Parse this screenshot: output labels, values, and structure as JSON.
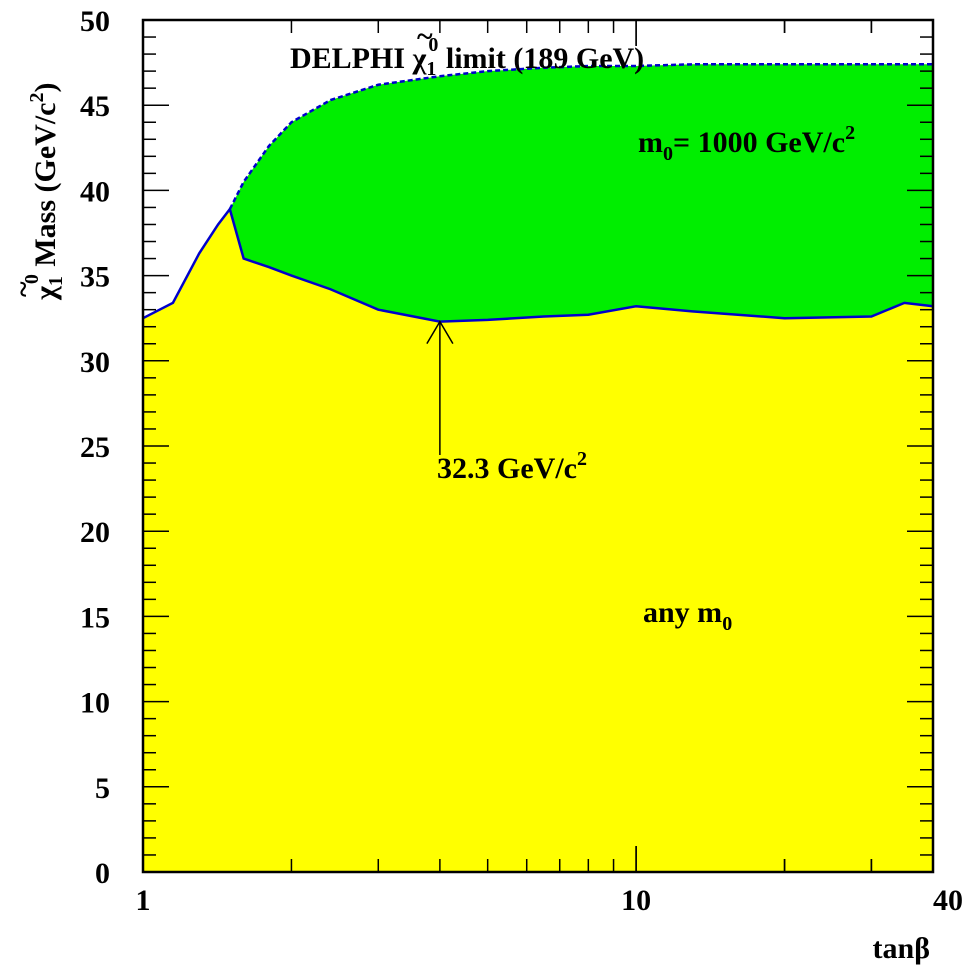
{
  "chart_data": {
    "type": "area",
    "title_parts": {
      "prefix": "DELPHI ",
      "symbol": "χ",
      "tilde": "~",
      "sub": "1",
      "sup": "0",
      "suffix": " limit  (189 GeV)"
    },
    "ylabel_parts": {
      "symbol": "χ",
      "tilde": "~",
      "sub": "1",
      "sup": "0",
      "main": " Mass (GeV/c",
      "pow": "2",
      "close": ")"
    },
    "xlabel": "tanβ",
    "x_scale": "log",
    "xlim": [
      1,
      40
    ],
    "ylim": [
      0,
      50
    ],
    "x_ticks": [
      {
        "value": 1,
        "label": "1"
      },
      {
        "value": 10,
        "label": "10"
      },
      {
        "value": 40,
        "label": "40"
      }
    ],
    "y_ticks": [
      {
        "value": 0,
        "label": "0"
      },
      {
        "value": 5,
        "label": "5"
      },
      {
        "value": 10,
        "label": "10"
      },
      {
        "value": 15,
        "label": "15"
      },
      {
        "value": 20,
        "label": "20"
      },
      {
        "value": 25,
        "label": "25"
      },
      {
        "value": 30,
        "label": "30"
      },
      {
        "value": 35,
        "label": "35"
      },
      {
        "value": 40,
        "label": "40"
      },
      {
        "value": 45,
        "label": "45"
      },
      {
        "value": 50,
        "label": "50"
      }
    ],
    "grid": false,
    "series": [
      {
        "name": "",
        "label_parts": {
          "main": "any m",
          "sub": "0"
        },
        "color": "#ffff00",
        "line_color": "#0000cc",
        "x": [
          1,
          1.15,
          1.3,
          1.42,
          1.5,
          1.6,
          1.8,
          2.0,
          2.4,
          3.0,
          4.0,
          5.0,
          6.5,
          8.0,
          10.0,
          13.0,
          20.0,
          30.0,
          35.0,
          40.0
        ],
        "y": [
          32.5,
          33.4,
          36.3,
          38.0,
          38.9,
          36.0,
          35.5,
          35.0,
          34.2,
          33.0,
          32.3,
          32.4,
          32.6,
          32.7,
          33.2,
          32.9,
          32.5,
          32.6,
          33.4,
          33.2
        ]
      },
      {
        "name": "",
        "label_parts": {
          "main": "m",
          "sub": "0",
          "rest": "= 1000 GeV/c",
          "pow": "2"
        },
        "color": "#00ee00",
        "line_color": "#0000cc",
        "line_style": "dashed",
        "x": [
          1.5,
          1.6,
          1.8,
          2.0,
          2.4,
          3.0,
          4.0,
          5.0,
          6.5,
          8.0,
          10.0,
          13.0,
          20.0,
          30.0,
          40.0
        ],
        "y": [
          38.9,
          40.5,
          42.6,
          44.0,
          45.3,
          46.2,
          46.7,
          47.0,
          47.2,
          47.3,
          47.3,
          47.4,
          47.4,
          47.4,
          47.4
        ]
      }
    ],
    "annotations": [
      {
        "text_main": "32.3 GeV/c",
        "text_pow": "2",
        "arrow_to_x": 4.0,
        "arrow_to_y": 32.3
      }
    ]
  }
}
